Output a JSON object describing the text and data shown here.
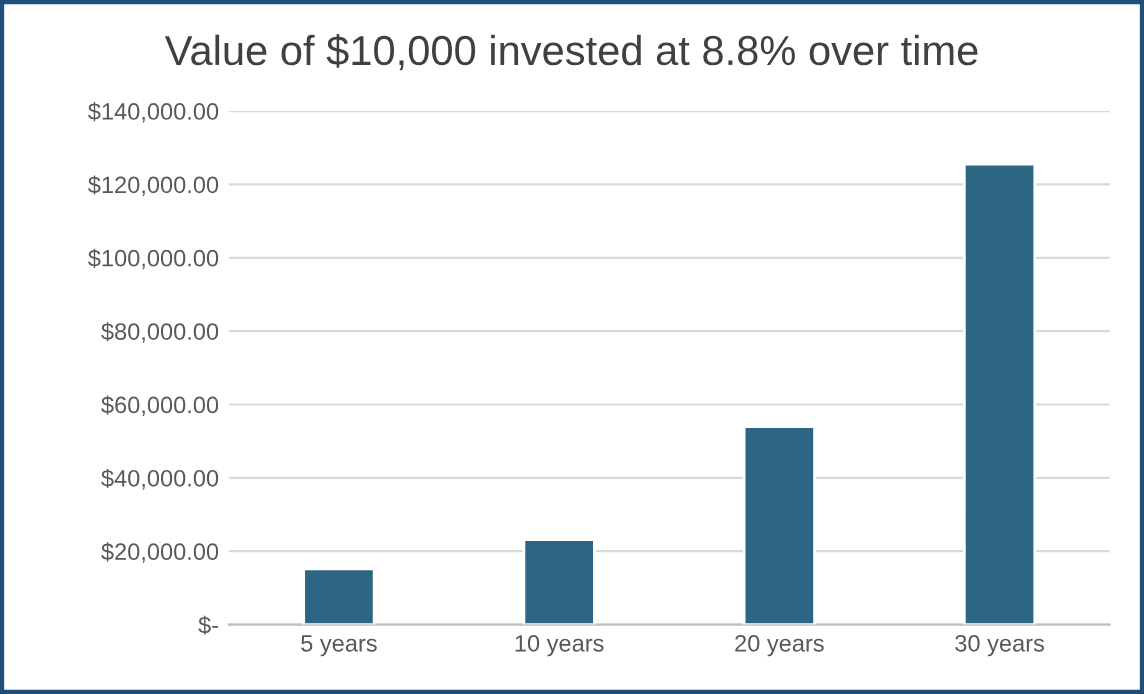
{
  "chart_data": {
    "type": "bar",
    "title": "Value of $10,000 invested at 8.8% over time",
    "categories": [
      "5 years",
      "10 years",
      "20 years",
      "30 years"
    ],
    "series": [
      {
        "color": "#2e6585",
        "values": [
          15200,
          23200,
          54000,
          125500
        ]
      }
    ],
    "ylim": [
      0,
      140000
    ],
    "yticks": [
      {
        "value": 0,
        "label": "$-"
      },
      {
        "value": 20000,
        "label": "$20,000.00"
      },
      {
        "value": 40000,
        "label": "$40,000.00"
      },
      {
        "value": 60000,
        "label": "$60,000.00"
      },
      {
        "value": 80000,
        "label": "$80,000.00"
      },
      {
        "value": 100000,
        "label": "$100,000.00"
      },
      {
        "value": 120000,
        "label": "$120,000.00"
      },
      {
        "value": 140000,
        "label": "$140,000.00"
      }
    ],
    "grid": "y",
    "legend": false
  }
}
